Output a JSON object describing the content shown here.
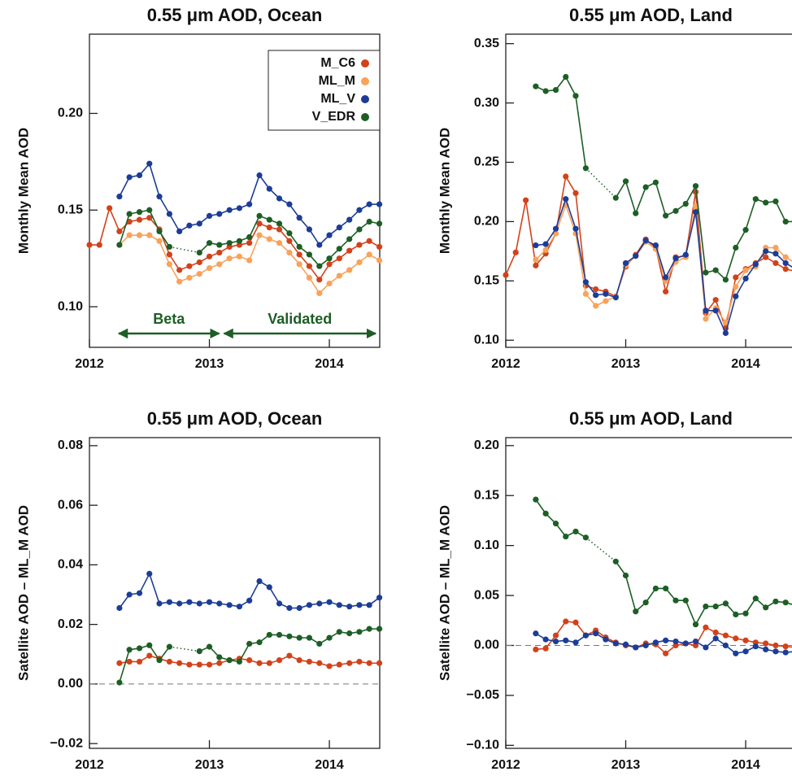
{
  "chart_data": [
    {
      "type": "line",
      "title": "0.55 μm AOD, Ocean",
      "y_label": "Monthly Mean AOD",
      "x": [
        2012,
        2012.083,
        2012.167,
        2012.25,
        2012.333,
        2012.417,
        2012.5,
        2012.583,
        2012.667,
        2012.75,
        2012.833,
        2012.917,
        2013,
        2013.083,
        2013.167,
        2013.25,
        2013.333,
        2013.417,
        2013.5,
        2013.583,
        2013.667,
        2013.75,
        2013.833,
        2013.917,
        2014,
        2014.083,
        2014.167,
        2014.25,
        2014.333,
        2014.417
      ],
      "xlim": [
        2012,
        2014.42
      ],
      "xticks": [
        2012,
        2013,
        2014
      ],
      "ylim": [
        0.079,
        0.241
      ],
      "yticks": [
        {
          "value": 0.1,
          "label": "0.10"
        },
        0.15,
        {
          "value": 0.2,
          "label": "0.20"
        }
      ],
      "legend": "upper right",
      "annotations": [
        "Beta",
        "Validated"
      ],
      "series": [
        {
          "name": "M_C6",
          "color": "#d2421a",
          "values": [
            0.132,
            0.132,
            0.151,
            0.139,
            0.144,
            0.145,
            0.146,
            0.14,
            0.127,
            0.119,
            0.121,
            0.123,
            0.126,
            0.128,
            0.131,
            0.132,
            0.133,
            0.143,
            0.141,
            0.14,
            0.134,
            0.127,
            0.121,
            0.114,
            0.122,
            0.125,
            0.129,
            0.132,
            0.134,
            0.131
          ]
        },
        {
          "name": "ML_M",
          "color": "#f9a25a",
          "values": [
            null,
            null,
            null,
            0.132,
            0.137,
            0.137,
            0.137,
            0.134,
            0.122,
            0.113,
            0.115,
            0.117,
            0.12,
            0.122,
            0.125,
            0.126,
            0.124,
            0.137,
            0.135,
            0.133,
            0.128,
            0.122,
            0.115,
            0.107,
            0.112,
            0.116,
            0.119,
            0.123,
            0.127,
            0.124
          ]
        },
        {
          "name": "ML_V",
          "color": "#1c3d96",
          "values": [
            null,
            null,
            null,
            0.157,
            0.167,
            0.168,
            0.174,
            0.157,
            0.148,
            0.139,
            0.142,
            0.143,
            0.147,
            0.148,
            0.15,
            0.151,
            0.153,
            0.168,
            0.161,
            0.156,
            0.153,
            0.146,
            0.14,
            0.132,
            0.137,
            0.141,
            0.145,
            0.15,
            0.153,
            0.153
          ]
        },
        {
          "name": "V_EDR",
          "color": "#1d5e25",
          "gap_line": "dotted",
          "values": [
            null,
            null,
            null,
            0.132,
            0.148,
            0.149,
            0.15,
            0.139,
            0.131,
            null,
            null,
            0.128,
            0.133,
            0.132,
            0.133,
            0.134,
            0.136,
            0.147,
            0.145,
            0.143,
            0.138,
            0.131,
            0.127,
            0.121,
            0.125,
            0.13,
            0.135,
            0.14,
            0.144,
            0.143
          ]
        }
      ]
    },
    {
      "type": "line",
      "title": "0.55 μm AOD, Land",
      "y_label": "Monthly Mean AOD",
      "x": [
        2012,
        2012.083,
        2012.167,
        2012.25,
        2012.333,
        2012.417,
        2012.5,
        2012.583,
        2012.667,
        2012.75,
        2012.833,
        2012.917,
        2013,
        2013.083,
        2013.167,
        2013.25,
        2013.333,
        2013.417,
        2013.5,
        2013.583,
        2013.667,
        2013.75,
        2013.833,
        2013.917,
        2014,
        2014.083,
        2014.167,
        2014.25,
        2014.333,
        2014.417
      ],
      "xlim": [
        2012,
        2014.42
      ],
      "xticks": [
        2012,
        2013,
        2014
      ],
      "ylim": [
        0.094,
        0.358
      ],
      "yticks": [
        {
          "value": 0.1,
          "label": "0.10"
        },
        0.15,
        {
          "value": 0.2,
          "label": "0.20"
        },
        0.25,
        {
          "value": 0.3,
          "label": "0.30"
        },
        0.35
      ],
      "series": [
        {
          "color": "#d2421a",
          "values": [
            0.155,
            0.174,
            0.218,
            0.163,
            0.173,
            0.19,
            0.238,
            0.224,
            0.146,
            0.143,
            0.141,
            0.137,
            0.162,
            0.172,
            0.185,
            0.178,
            0.141,
            0.17,
            0.171,
            0.225,
            0.123,
            0.134,
            0.11,
            0.153,
            0.16,
            0.165,
            0.17,
            0.165,
            0.16,
            0.158
          ]
        },
        {
          "color": "#f9a25a",
          "values": [
            null,
            null,
            null,
            0.168,
            0.176,
            0.19,
            0.214,
            0.19,
            0.139,
            0.129,
            0.133,
            0.137,
            0.163,
            0.171,
            0.183,
            0.177,
            0.15,
            0.166,
            0.17,
            0.213,
            0.118,
            0.127,
            0.115,
            0.145,
            0.159,
            0.162,
            0.178,
            0.178,
            0.17,
            0.165
          ]
        },
        {
          "color": "#1c3d96",
          "values": [
            null,
            null,
            null,
            0.18,
            0.181,
            0.194,
            0.219,
            0.194,
            0.149,
            0.138,
            0.139,
            0.136,
            0.165,
            0.171,
            0.184,
            0.18,
            0.153,
            0.169,
            0.172,
            0.208,
            0.125,
            0.125,
            0.106,
            0.137,
            0.152,
            0.164,
            0.175,
            0.173,
            0.165,
            0.16
          ]
        },
        {
          "color": "#1d5e25",
          "gap_line": "dotted",
          "values": [
            null,
            null,
            null,
            0.314,
            0.31,
            0.311,
            0.322,
            0.306,
            0.245,
            null,
            null,
            0.22,
            0.234,
            0.207,
            0.229,
            0.233,
            0.205,
            0.209,
            0.215,
            0.23,
            0.157,
            0.159,
            0.151,
            0.178,
            0.193,
            0.219,
            0.216,
            0.217,
            0.2,
            0.2
          ]
        }
      ]
    },
    {
      "type": "line",
      "title": "0.55 μm AOD, Ocean",
      "y_label": "Satellite AOD – ML_M AOD",
      "x": [
        2012,
        2012.083,
        2012.167,
        2012.25,
        2012.333,
        2012.417,
        2012.5,
        2012.583,
        2012.667,
        2012.75,
        2012.833,
        2012.917,
        2013,
        2013.083,
        2013.167,
        2013.25,
        2013.333,
        2013.417,
        2013.5,
        2013.583,
        2013.667,
        2013.75,
        2013.833,
        2013.917,
        2014,
        2014.083,
        2014.167,
        2014.25,
        2014.333,
        2014.417
      ],
      "xlim": [
        2012,
        2014.42
      ],
      "xticks": [
        2012,
        2013,
        2014
      ],
      "ylim": [
        -0.0216,
        0.0827
      ],
      "yticks": [
        {
          "value": -0.02,
          "label": "−0.02"
        },
        {
          "value": 0,
          "label": "0.00"
        },
        0.02,
        0.04,
        0.06,
        0.08
      ],
      "zero_line": true,
      "series": [
        {
          "color": "#d2421a",
          "values": [
            null,
            null,
            null,
            0.007,
            0.0075,
            0.0075,
            0.0095,
            0.0085,
            0.0075,
            0.007,
            0.0065,
            0.0065,
            0.0065,
            0.007,
            0.008,
            0.0085,
            0.008,
            0.007,
            0.007,
            0.008,
            0.0095,
            0.008,
            0.0075,
            0.007,
            0.006,
            0.0065,
            0.007,
            0.0075,
            0.007,
            0.007
          ]
        },
        {
          "color": "#1c3d96",
          "values": [
            null,
            null,
            null,
            0.0255,
            0.03,
            0.0305,
            0.037,
            0.027,
            0.0275,
            0.027,
            0.0275,
            0.027,
            0.0275,
            0.027,
            0.0265,
            0.026,
            0.028,
            0.0345,
            0.0325,
            0.027,
            0.0255,
            0.0255,
            0.0265,
            0.027,
            0.0275,
            0.0265,
            0.026,
            0.0265,
            0.0265,
            0.029
          ]
        },
        {
          "color": "#1d5e25",
          "gap_line": "dotted",
          "values": [
            null,
            null,
            null,
            0.0005,
            0.0115,
            0.012,
            0.013,
            0.008,
            0.0125,
            null,
            null,
            0.011,
            0.0125,
            0.009,
            0.008,
            0.0075,
            0.0135,
            0.014,
            0.0165,
            0.0165,
            0.016,
            0.0155,
            0.0155,
            0.0135,
            0.0155,
            0.0175,
            0.017,
            0.0175,
            0.0185,
            0.0185
          ]
        }
      ]
    },
    {
      "type": "line",
      "title": "0.55 μm AOD, Land",
      "y_label": "Satellite AOD – ML_M AOD",
      "x": [
        2012,
        2012.083,
        2012.167,
        2012.25,
        2012.333,
        2012.417,
        2012.5,
        2012.583,
        2012.667,
        2012.75,
        2012.833,
        2012.917,
        2013,
        2013.083,
        2013.167,
        2013.25,
        2013.333,
        2013.417,
        2013.5,
        2013.583,
        2013.667,
        2013.75,
        2013.833,
        2013.917,
        2014,
        2014.083,
        2014.167,
        2014.25,
        2014.333,
        2014.417
      ],
      "xlim": [
        2012,
        2014.42
      ],
      "xticks": [
        2012,
        2013,
        2014
      ],
      "ylim": [
        -0.103,
        0.208
      ],
      "yticks": [
        {
          "value": -0.1,
          "label": "−0.10"
        },
        {
          "value": -0.05,
          "label": "−0.05"
        },
        {
          "value": 0,
          "label": "0.00"
        },
        0.05,
        {
          "value": 0.1,
          "label": "0.10"
        },
        0.15,
        {
          "value": 0.2,
          "label": "0.20"
        }
      ],
      "zero_line": true,
      "series": [
        {
          "color": "#d2421a",
          "values": [
            null,
            null,
            null,
            -0.004,
            -0.003,
            0.01,
            0.024,
            0.023,
            0.01,
            0.015,
            0.008,
            0.003,
            0.0,
            -0.002,
            0.002,
            0.001,
            -0.008,
            0.0,
            0.002,
            0.0,
            0.018,
            0.013,
            0.01,
            0.007,
            0.005,
            0.003,
            0.002,
            0.0,
            -0.001,
            -0.002
          ]
        },
        {
          "color": "#1c3d96",
          "values": [
            null,
            null,
            null,
            0.012,
            0.006,
            0.004,
            0.005,
            0.003,
            0.01,
            0.012,
            0.006,
            0.002,
            0.001,
            -0.002,
            0.0,
            0.003,
            0.005,
            0.004,
            0.002,
            0.004,
            -0.002,
            0.007,
            0.0,
            -0.008,
            -0.006,
            -0.001,
            -0.004,
            -0.006,
            -0.007,
            -0.006
          ]
        },
        {
          "color": "#1d5e25",
          "gap_line": "dotted",
          "values": [
            null,
            null,
            null,
            0.146,
            0.132,
            0.122,
            0.109,
            0.114,
            0.108,
            null,
            null,
            0.084,
            0.07,
            0.034,
            0.043,
            0.057,
            0.057,
            0.045,
            0.045,
            0.021,
            0.039,
            0.039,
            0.042,
            0.031,
            0.032,
            0.047,
            0.038,
            0.044,
            0.043,
            0.04
          ]
        }
      ]
    }
  ]
}
